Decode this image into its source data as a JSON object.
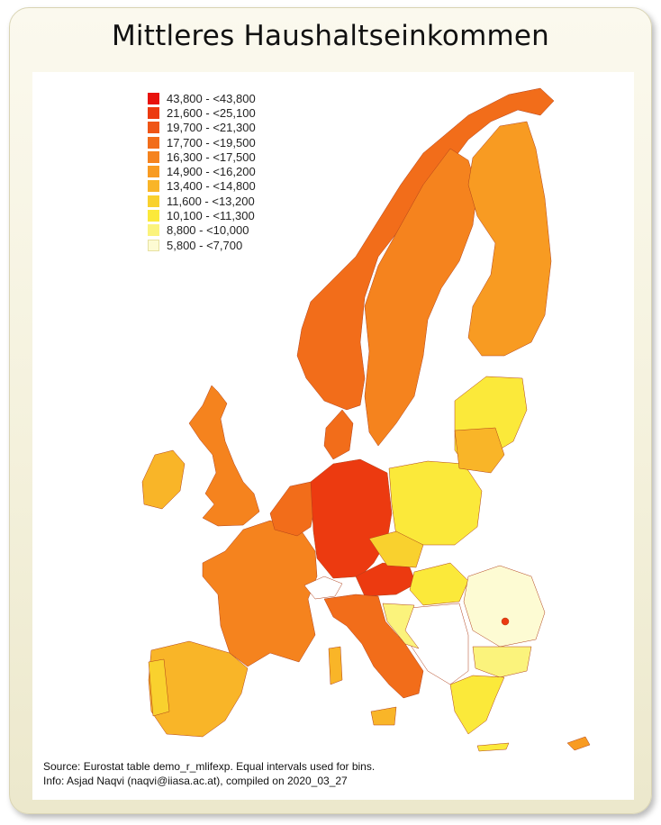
{
  "title": "Mittleres Haushaltseinkommen",
  "legend": [
    {
      "label": "43,800 - <43,800",
      "color": "#e8120c"
    },
    {
      "label": "21,600 - <25,100",
      "color": "#ec3a10"
    },
    {
      "label": "19,700 - <21,300",
      "color": "#ef5516"
    },
    {
      "label": "17,700 - <19,500",
      "color": "#f26d1a"
    },
    {
      "label": "16,300 - <17,500",
      "color": "#f5831e"
    },
    {
      "label": "14,900 - <16,200",
      "color": "#f89b22"
    },
    {
      "label": "13,400 - <14,800",
      "color": "#f9b528"
    },
    {
      "label": "11,600 - <13,200",
      "color": "#f9d12e"
    },
    {
      "label": "10,100 - <11,300",
      "color": "#fbe93a"
    },
    {
      "label": "8,800 - <10,000",
      "color": "#fbf37c"
    },
    {
      "label": "5,800 - <7,700",
      "color": "#fdfbd3"
    }
  ],
  "source_lines": [
    "Source: Eurostat table demo_r_mlifexp. Equal intervals used for bins.",
    "Info: Asjad Naqvi (naqvi@iiasa.ac.at), compiled on 2020_03_27"
  ]
}
